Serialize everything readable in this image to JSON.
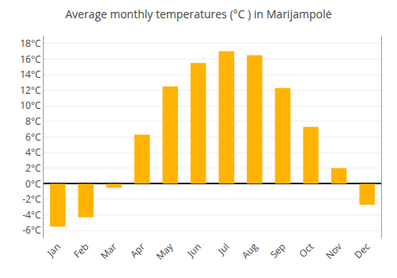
{
  "chart_data": {
    "type": "bar",
    "title": "Average monthly temperatures (°C ) in Marijampolė",
    "categories": [
      "Jan",
      "Feb",
      "Mar",
      "Apr",
      "May",
      "Jun",
      "Jul",
      "Aug",
      "Sep",
      "Oct",
      "Nov",
      "Dec"
    ],
    "values": [
      -5.5,
      -4.3,
      -0.5,
      6.3,
      12.5,
      15.5,
      17.0,
      16.5,
      12.3,
      7.3,
      2.0,
      -2.7
    ],
    "color": "#FFB300",
    "ylim": [
      -7,
      19
    ],
    "yticks": [
      {
        "value": -6,
        "label": "-6°C"
      },
      {
        "value": -4,
        "label": "-4°C"
      },
      {
        "value": -2,
        "label": "-2°C"
      },
      {
        "value": 0,
        "label": "0°C"
      },
      {
        "value": 2,
        "label": "2°C"
      },
      {
        "value": 4,
        "label": "4°C"
      },
      {
        "value": 6,
        "label": "6°C"
      },
      {
        "value": 8,
        "label": "8°C"
      },
      {
        "value": 10,
        "label": "10°C"
      },
      {
        "value": 12,
        "label": "12°C"
      },
      {
        "value": 14,
        "label": "14°C"
      },
      {
        "value": 16,
        "label": "16°C"
      },
      {
        "value": 18,
        "label": "18°C"
      }
    ],
    "grid": true
  }
}
